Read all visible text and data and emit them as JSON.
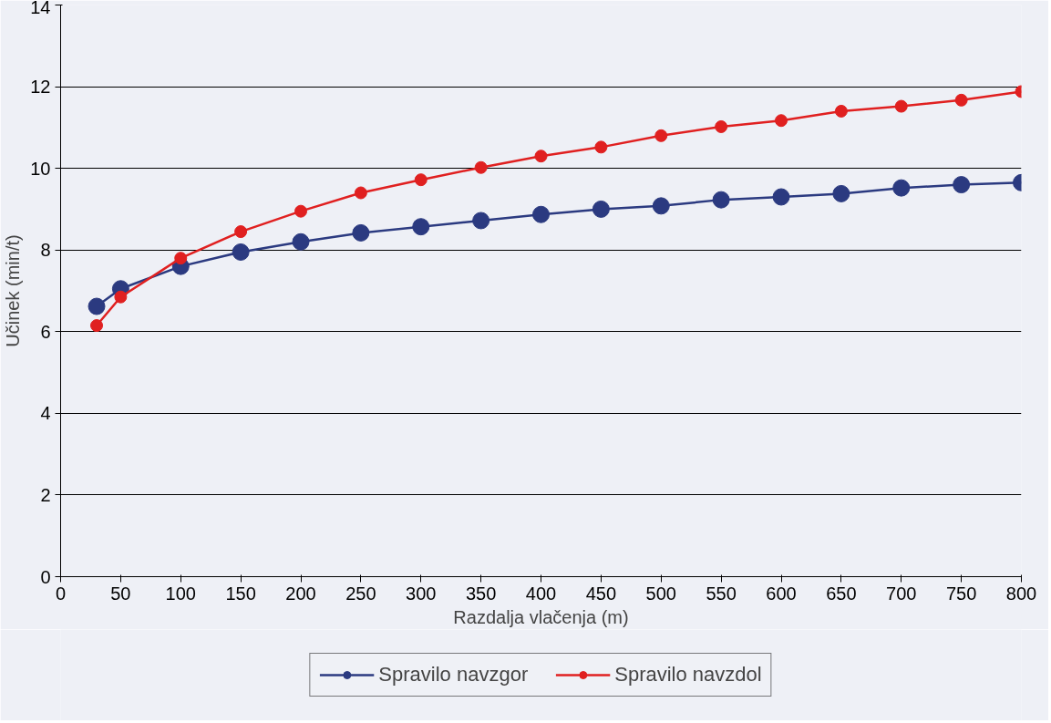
{
  "chart_data": {
    "type": "line",
    "xlabel": "Razdalja vlačenja (m)",
    "ylabel": "Učinek (min/t)",
    "x": [
      30,
      50,
      100,
      150,
      200,
      250,
      300,
      350,
      400,
      450,
      500,
      550,
      600,
      650,
      700,
      750,
      800
    ],
    "series": [
      {
        "name": "Spravilo navzgor",
        "color": "#2b3a80",
        "values": [
          6.62,
          7.05,
          7.6,
          7.95,
          8.2,
          8.42,
          8.57,
          8.72,
          8.87,
          9.0,
          9.08,
          9.23,
          9.3,
          9.38,
          9.52,
          9.6,
          9.65
        ]
      },
      {
        "name": "Spravilo navzdol",
        "color": "#e02020",
        "values": [
          6.15,
          6.85,
          7.8,
          8.45,
          8.95,
          9.4,
          9.72,
          10.02,
          10.3,
          10.52,
          10.8,
          11.02,
          11.17,
          11.4,
          11.52,
          11.67,
          11.88
        ]
      }
    ],
    "xlim": [
      0,
      800
    ],
    "ylim": [
      0,
      14
    ],
    "xticks": [
      0,
      50,
      100,
      150,
      200,
      250,
      300,
      350,
      400,
      450,
      500,
      550,
      600,
      650,
      700,
      750,
      800
    ],
    "yticks": [
      0,
      2,
      4,
      6,
      8,
      10,
      12,
      14
    ],
    "grid": "y",
    "legend": "bottom",
    "marker": "circle",
    "line_style": "solid"
  }
}
